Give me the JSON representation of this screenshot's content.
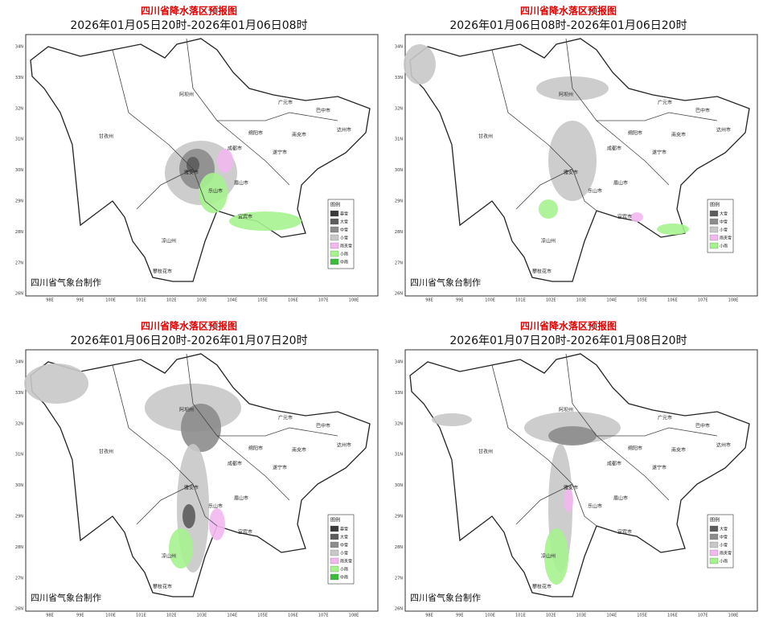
{
  "panels": [
    {
      "title": "四川省降水落区预报图",
      "subtitle": "2026年01月05日20时-2026年01月06日08时",
      "credit": "四川省气象台制作",
      "legend_title": "图例",
      "legend": [
        {
          "label": "暴雪",
          "color": "#3a3a3a"
        },
        {
          "label": "大雪",
          "color": "#5c5c5c"
        },
        {
          "label": "中雪",
          "color": "#8c8c8c"
        },
        {
          "label": "小雪",
          "color": "#c8c8c8"
        },
        {
          "label": "雨夹雪",
          "color": "#f2b8f0"
        },
        {
          "label": "小雨",
          "color": "#a6f28f"
        },
        {
          "label": "中雨",
          "color": "#3dbb3d"
        }
      ]
    },
    {
      "title": "四川省降水落区预报图",
      "subtitle": "2026年01月06日08时-2026年01月06日20时",
      "credit": "四川省气象台制作",
      "legend_title": "图例",
      "legend": [
        {
          "label": "大雪",
          "color": "#5c5c5c"
        },
        {
          "label": "中雪",
          "color": "#8c8c8c"
        },
        {
          "label": "小雪",
          "color": "#c8c8c8"
        },
        {
          "label": "雨夹雪",
          "color": "#f2b8f0"
        },
        {
          "label": "小雨",
          "color": "#a6f28f"
        }
      ]
    },
    {
      "title": "四川省降水落区预报图",
      "subtitle": "2026年01月06日20时-2026年01月07日20时",
      "credit": "四川省气象台制作",
      "legend_title": "图例",
      "legend": [
        {
          "label": "暴雪",
          "color": "#3a3a3a"
        },
        {
          "label": "大雪",
          "color": "#5c5c5c"
        },
        {
          "label": "中雪",
          "color": "#8c8c8c"
        },
        {
          "label": "小雪",
          "color": "#c8c8c8"
        },
        {
          "label": "雨夹雪",
          "color": "#f2b8f0"
        },
        {
          "label": "小雨",
          "color": "#a6f28f"
        },
        {
          "label": "中雨",
          "color": "#3dbb3d"
        }
      ]
    },
    {
      "title": "四川省降水落区预报图",
      "subtitle": "2026年01月07日20时-2026年01月08日20时",
      "credit": "四川省气象台制作",
      "legend_title": "图例",
      "legend": [
        {
          "label": "大雪",
          "color": "#5c5c5c"
        },
        {
          "label": "中雪",
          "color": "#8c8c8c"
        },
        {
          "label": "小雪",
          "color": "#c8c8c8"
        },
        {
          "label": "雨夹雪",
          "color": "#f2b8f0"
        },
        {
          "label": "小雨",
          "color": "#a6f28f"
        }
      ]
    }
  ],
  "latitude_labels": [
    "34N",
    "33N",
    "32N",
    "31N",
    "30N",
    "29N",
    "28N",
    "27N",
    "26N"
  ],
  "longitude_labels": [
    "98E",
    "99E",
    "100E",
    "101E",
    "102E",
    "103E",
    "104E",
    "105E",
    "106E",
    "107E",
    "108E"
  ],
  "cities": [
    "阿坝州",
    "甘孜州",
    "广元市",
    "巴中市",
    "绵阳市",
    "达州市",
    "南充市",
    "成都市",
    "遂宁市",
    "雅安市",
    "乐山市",
    "眉山市",
    "宜宾市",
    "凉山州",
    "攀枝花市"
  ]
}
